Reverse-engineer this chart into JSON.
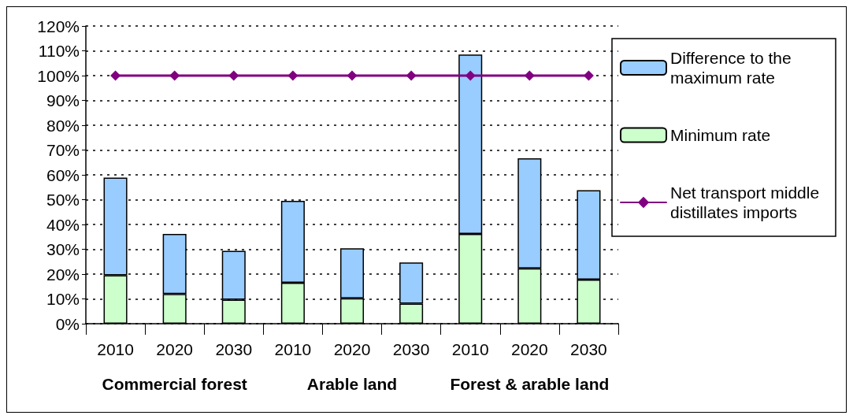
{
  "chart_data": {
    "type": "bar",
    "stacked": true,
    "categories": [
      "2010",
      "2020",
      "2030",
      "2010",
      "2020",
      "2030",
      "2010",
      "2020",
      "2030"
    ],
    "annotations": [
      "Commercial forest",
      "Arable land",
      "Forest & arable land"
    ],
    "series": [
      {
        "name": "Minimum rate",
        "color": "#ccffcc",
        "values": [
          19.5,
          12,
          9.7,
          16.5,
          10.2,
          8.1,
          36.2,
          22.3,
          17.8
        ]
      },
      {
        "name": "Difference to the maximum rate",
        "color": "#99ccff",
        "values": [
          39.4,
          24.2,
          19.7,
          33,
          20.2,
          16.6,
          72.3,
          44.4,
          36
        ]
      },
      {
        "name": "Net transport middle distillates imports",
        "type": "line",
        "color": "#800080",
        "values": [
          100,
          100,
          100,
          100,
          100,
          100,
          100,
          100,
          100
        ]
      }
    ],
    "ylim": [
      0,
      120
    ],
    "yticks": [
      {
        "value": 0,
        "label": "0%"
      },
      {
        "value": 10,
        "label": "10%"
      },
      {
        "value": 20,
        "label": "20%"
      },
      {
        "value": 30,
        "label": "30%"
      },
      {
        "value": 40,
        "label": "40%"
      },
      {
        "value": 50,
        "label": "50%"
      },
      {
        "value": 60,
        "label": "60%"
      },
      {
        "value": 70,
        "label": "70%"
      },
      {
        "value": 80,
        "label": "80%"
      },
      {
        "value": 90,
        "label": "90%"
      },
      {
        "value": 100,
        "label": "100%"
      },
      {
        "value": 110,
        "label": "110%"
      },
      {
        "value": 120,
        "label": "120%"
      }
    ],
    "grid": "y",
    "legend": "right",
    "marker": "diamond",
    "line_style": "solid"
  }
}
